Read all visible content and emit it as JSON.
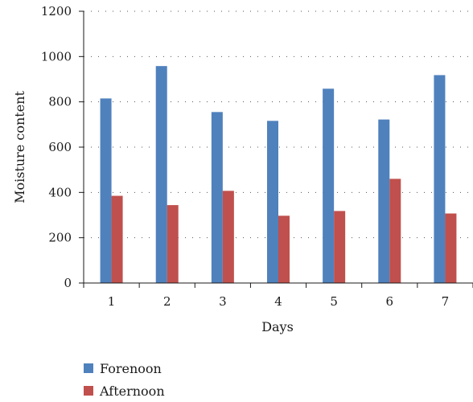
{
  "chart_data": {
    "type": "bar",
    "title": "",
    "xlabel": "Days",
    "ylabel": "Moisture content",
    "categories": [
      "1",
      "2",
      "3",
      "4",
      "5",
      "6",
      "7"
    ],
    "series": [
      {
        "name": "Forenoon",
        "color": "#4F81BD",
        "values": [
          815,
          958,
          755,
          716,
          858,
          722,
          918
        ]
      },
      {
        "name": "Afternoon",
        "color": "#C0504D",
        "values": [
          385,
          344,
          407,
          297,
          318,
          460,
          307
        ]
      }
    ],
    "ylim": [
      0,
      1200
    ],
    "yticks": [
      "0",
      "200",
      "400",
      "600",
      "800",
      "1000",
      "1200"
    ],
    "grid": "dotted horizontal",
    "legend_position": "bottom-left"
  }
}
